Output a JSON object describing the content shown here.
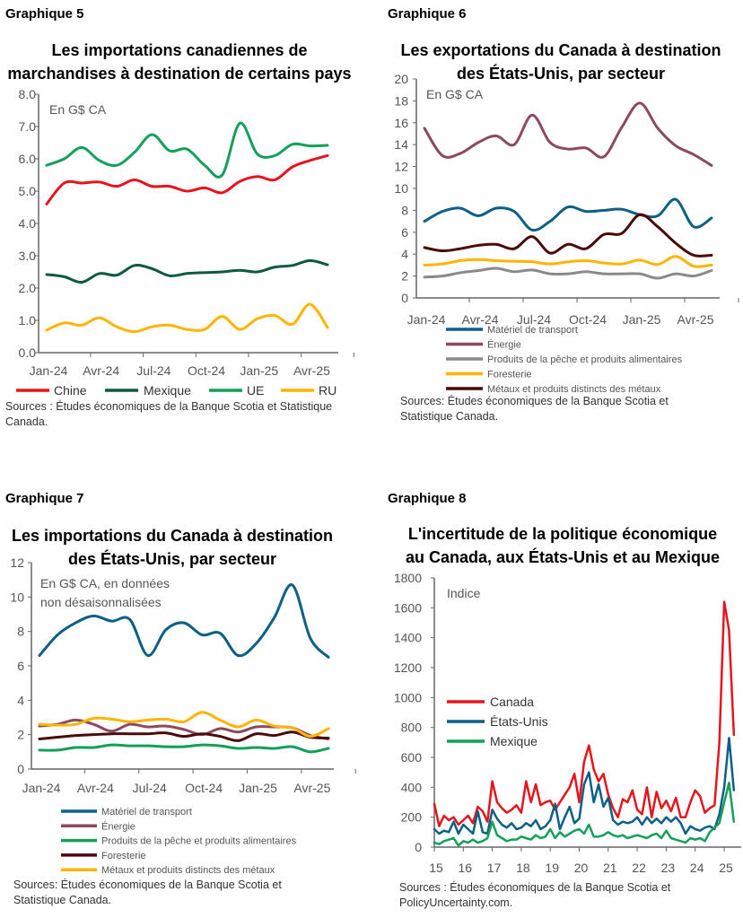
{
  "chart_data": [
    {
      "type": "line",
      "label": "Graphique 5",
      "title": [
        "Les importations canadiennes de",
        "marchandises à destination de certains pays"
      ],
      "annotation": [
        "En G$ CA"
      ],
      "ylim": [
        0,
        8
      ],
      "yticks": [
        "0.0",
        "1.0",
        "2.0",
        "3.0",
        "4.0",
        "5.0",
        "6.0",
        "7.0",
        "8.0"
      ],
      "xticks": [
        "Jan-24",
        "Avr-24",
        "Jul-24",
        "Oct-24",
        "Jan-25",
        "Avr-25"
      ],
      "x": [
        "2024-01",
        "2024-02",
        "2024-03",
        "2024-04",
        "2024-05",
        "2024-06",
        "2024-07",
        "2024-08",
        "2024-09",
        "2024-10",
        "2024-11",
        "2024-12",
        "2025-01",
        "2025-02",
        "2025-03",
        "2025-04",
        "2025-05"
      ],
      "legend_position": "bottom",
      "series": [
        {
          "name": "Chine",
          "color": "#e8141c",
          "values": [
            4.6,
            5.25,
            5.25,
            5.28,
            5.15,
            5.35,
            5.15,
            5.15,
            5.0,
            5.1,
            4.95,
            5.3,
            5.45,
            5.35,
            5.75,
            5.95,
            6.1
          ]
        },
        {
          "name": "Mexique",
          "color": "#0b5a3f",
          "values": [
            2.42,
            2.35,
            2.18,
            2.45,
            2.4,
            2.7,
            2.6,
            2.38,
            2.45,
            2.48,
            2.5,
            2.55,
            2.5,
            2.65,
            2.7,
            2.85,
            2.72
          ]
        },
        {
          "name": "UE",
          "color": "#14a05a",
          "values": [
            5.8,
            6.0,
            6.35,
            5.95,
            5.8,
            6.2,
            6.75,
            6.25,
            6.3,
            5.8,
            5.5,
            7.1,
            6.15,
            6.1,
            6.45,
            6.4,
            6.42
          ]
        },
        {
          "name": "RU",
          "color": "#ffb400",
          "values": [
            0.7,
            0.92,
            0.85,
            1.08,
            0.8,
            0.65,
            0.8,
            0.85,
            0.72,
            0.72,
            1.12,
            0.72,
            1.05,
            1.15,
            0.88,
            1.5,
            0.78
          ]
        }
      ],
      "sources": [
        "Sources : Études économiques de la Banque Scotia et Statistique",
        "Canada."
      ]
    },
    {
      "type": "line",
      "label": "Graphique 6",
      "title": [
        "Les exportations du Canada à destination",
        "des États-Unis, par secteur"
      ],
      "annotation": [
        "En G$ CA"
      ],
      "ylim": [
        0,
        20
      ],
      "yticks": [
        "0",
        "2",
        "4",
        "6",
        "8",
        "10",
        "12",
        "14",
        "16",
        "18",
        "20"
      ],
      "xticks": [
        "Jan-24",
        "Avr-24",
        "Jul-24",
        "Oct-24",
        "Jan-25",
        "Avr-25"
      ],
      "legend_position": "bottom",
      "series": [
        {
          "name": "Matériel de transport",
          "color": "#0c5f86",
          "values": [
            7.0,
            7.9,
            8.2,
            7.5,
            8.2,
            7.9,
            6.2,
            7.0,
            8.3,
            7.9,
            8.0,
            8.1,
            7.6,
            7.5,
            9.0,
            6.5,
            7.3
          ]
        },
        {
          "name": "Énergie",
          "color": "#8b4a62",
          "values": [
            15.5,
            13.0,
            13.2,
            14.2,
            14.8,
            14.0,
            16.7,
            14.2,
            13.6,
            13.7,
            12.9,
            15.6,
            17.8,
            15.5,
            13.9,
            13.1,
            12.1
          ]
        },
        {
          "name": "Produits de la pêche et produits alimentaires",
          "color": "#8a8a8a",
          "values": [
            1.9,
            2.0,
            2.3,
            2.5,
            2.7,
            2.4,
            2.55,
            2.2,
            2.2,
            2.4,
            2.2,
            2.2,
            2.2,
            1.8,
            2.2,
            2.0,
            2.5
          ]
        },
        {
          "name": "Foresterie",
          "color": "#ffb400",
          "values": [
            3.0,
            3.1,
            3.4,
            3.5,
            3.4,
            3.35,
            3.3,
            3.1,
            3.3,
            3.4,
            3.2,
            3.1,
            3.45,
            3.05,
            3.8,
            2.9,
            3.0
          ]
        },
        {
          "name": "Métaux et produits distincts des métaux",
          "color": "#4a0a0a",
          "values": [
            4.6,
            4.3,
            4.5,
            4.8,
            4.9,
            4.5,
            5.6,
            4.1,
            4.9,
            4.5,
            5.8,
            5.9,
            7.6,
            6.5,
            5.0,
            3.9,
            3.9
          ]
        }
      ],
      "sources": [
        "Sources: Études économiques de la Banque Scotia et",
        "Statistique Canada."
      ]
    },
    {
      "type": "line",
      "label": "Graphique 7",
      "title": [
        "Les importations du Canada à destination",
        "des États-Unis, par secteur"
      ],
      "annotation": [
        "En G$ CA, en données",
        "non désaisonnalisées"
      ],
      "ylim": [
        0,
        12
      ],
      "yticks": [
        "0",
        "2",
        "4",
        "6",
        "8",
        "10",
        "12"
      ],
      "xticks": [
        "Jan-24",
        "Avr-24",
        "Jul-24",
        "Oct-24",
        "Jan-25",
        "Avr-25"
      ],
      "legend_position": "bottom",
      "series": [
        {
          "name": "Matériel de transport",
          "color": "#0c5f86",
          "values": [
            6.6,
            7.8,
            8.5,
            8.9,
            8.6,
            8.7,
            6.6,
            8.1,
            8.5,
            7.8,
            7.9,
            6.6,
            7.3,
            8.8,
            10.7,
            7.6,
            6.5
          ]
        },
        {
          "name": "Énergie",
          "color": "#8b4a62",
          "values": [
            2.5,
            2.6,
            2.85,
            2.6,
            2.2,
            2.6,
            2.45,
            2.5,
            2.3,
            2.0,
            2.35,
            2.15,
            2.45,
            2.45,
            2.4,
            1.95,
            1.75
          ]
        },
        {
          "name": "Produits de la pêche et produits alimentaires",
          "color": "#14a05a",
          "values": [
            1.1,
            1.1,
            1.25,
            1.25,
            1.4,
            1.35,
            1.35,
            1.3,
            1.3,
            1.4,
            1.35,
            1.2,
            1.25,
            1.2,
            1.3,
            1.0,
            1.2
          ]
        },
        {
          "name": "Foresterie",
          "color": "#4a0a0a",
          "values": [
            1.75,
            1.85,
            1.95,
            2.0,
            2.05,
            2.05,
            2.05,
            2.1,
            1.9,
            2.05,
            1.9,
            1.65,
            2.05,
            1.95,
            2.15,
            1.85,
            1.8
          ]
        },
        {
          "name": "Métaux et produits distincts des métaux",
          "color": "#ffb400",
          "values": [
            2.6,
            2.55,
            2.6,
            2.95,
            2.9,
            2.75,
            2.85,
            2.9,
            2.75,
            3.3,
            2.85,
            2.45,
            2.85,
            2.5,
            2.4,
            1.9,
            2.35
          ]
        }
      ],
      "sources": [
        "Sources: Études économiques de la Banque Scotia et",
        "Statistique Canada."
      ]
    },
    {
      "type": "line",
      "label": "Graphique 8",
      "title": [
        "L'incertitude de la politique économique",
        "au Canada, aux États-Unis et au Mexique"
      ],
      "annotation": [
        "Indice"
      ],
      "ylim": [
        0,
        1800
      ],
      "yticks": [
        "0",
        "200",
        "400",
        "600",
        "800",
        "1000",
        "1200",
        "1400",
        "1600",
        "1800"
      ],
      "xticks": [
        "15",
        "16",
        "17",
        "18",
        "19",
        "20",
        "21",
        "22",
        "23",
        "24",
        "25"
      ],
      "x_start_year": 2015,
      "x_step_years": 0.1667,
      "legend_position": "center-left",
      "series": [
        {
          "name": "Canada",
          "color": "#e8141c",
          "values": [
            290,
            140,
            210,
            180,
            200,
            150,
            180,
            210,
            160,
            270,
            240,
            170,
            440,
            300,
            260,
            230,
            250,
            280,
            230,
            440,
            300,
            420,
            280,
            300,
            310,
            250,
            300,
            350,
            400,
            490,
            300,
            570,
            680,
            520,
            440,
            490,
            350,
            260,
            200,
            320,
            300,
            380,
            250,
            220,
            400,
            200,
            370,
            260,
            310,
            240,
            330,
            200,
            200,
            300,
            380,
            340,
            230,
            260,
            280,
            700,
            1640,
            1450,
            750
          ]
        },
        {
          "name": "États-Unis",
          "color": "#0c5f86",
          "values": [
            120,
            90,
            110,
            100,
            170,
            90,
            150,
            120,
            90,
            240,
            100,
            90,
            250,
            190,
            150,
            130,
            160,
            120,
            130,
            160,
            140,
            180,
            120,
            140,
            180,
            290,
            120,
            200,
            270,
            160,
            190,
            420,
            500,
            300,
            420,
            270,
            330,
            180,
            150,
            170,
            160,
            170,
            200,
            150,
            200,
            160,
            190,
            160,
            200,
            170,
            200,
            160,
            90,
            140,
            120,
            110,
            130,
            140,
            120,
            220,
            400,
            730,
            380
          ]
        },
        {
          "name": "Mexique",
          "color": "#14a05a",
          "values": [
            30,
            20,
            40,
            50,
            60,
            10,
            40,
            30,
            50,
            30,
            40,
            60,
            170,
            80,
            60,
            40,
            50,
            50,
            70,
            60,
            50,
            80,
            60,
            70,
            120,
            60,
            100,
            70,
            90,
            110,
            120,
            90,
            150,
            70,
            70,
            80,
            100,
            80,
            70,
            80,
            60,
            70,
            80,
            70,
            60,
            80,
            90,
            60,
            110,
            60,
            50,
            40,
            30,
            60,
            50,
            60,
            40,
            100,
            130,
            160,
            300,
            430,
            170
          ]
        }
      ],
      "sources": [
        "Sources : Études économiques de la Banque Scotia et",
        "PolicyUncertainty.com."
      ]
    }
  ]
}
